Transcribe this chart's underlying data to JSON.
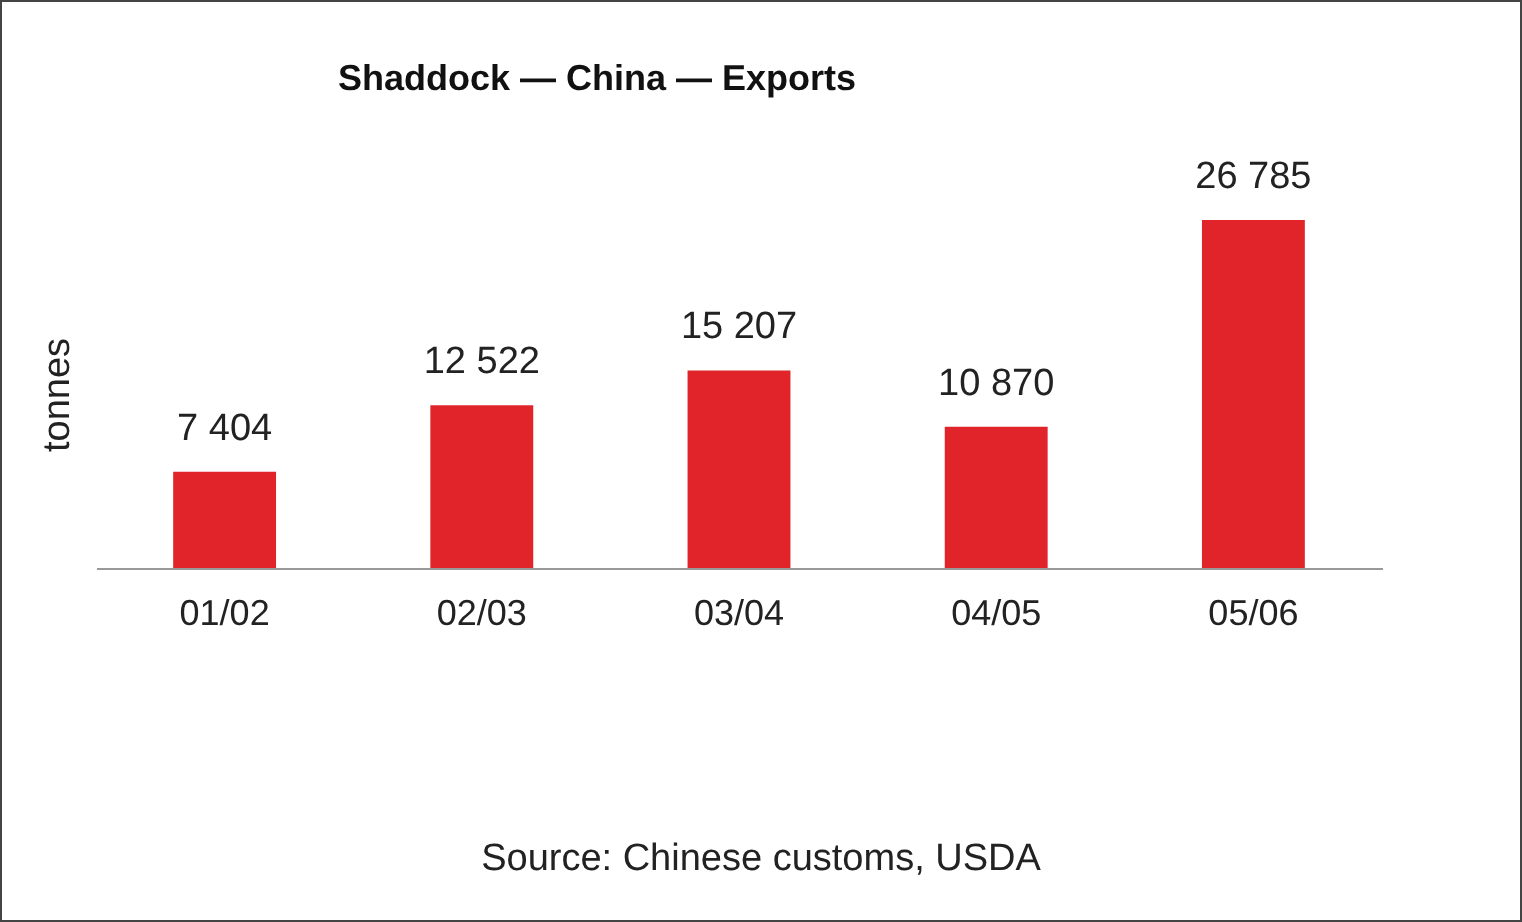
{
  "chart_data": {
    "type": "bar",
    "title": "Shaddock — China — Exports",
    "ylabel": "tonnes",
    "categories": [
      "01/02",
      "02/03",
      "03/04",
      "04/05",
      "05/06"
    ],
    "values": [
      7404,
      12522,
      15207,
      10870,
      26785
    ],
    "value_labels": [
      "7 404",
      "12 522",
      "15 207",
      "10 870",
      "26 785"
    ],
    "color": "#e0242a",
    "annotations": [
      "Source: Chinese customs, USDA"
    ]
  }
}
